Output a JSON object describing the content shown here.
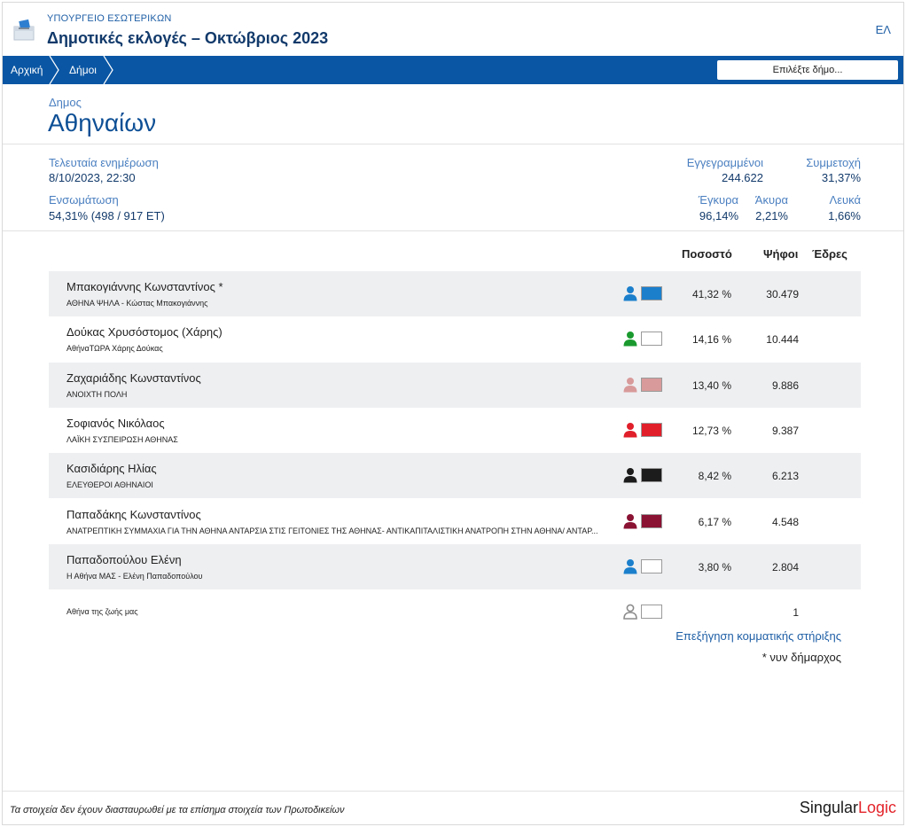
{
  "header": {
    "ministry": "ΥΠΟΥΡΓΕΙΟ ΕΣΩΤΕΡΙΚΩΝ",
    "title": "Δημοτικές εκλογές – Οκτώβριος 2023",
    "language": "ΕΛ"
  },
  "nav": {
    "home": "Αρχική",
    "municipalities": "Δήμοι",
    "select_placeholder": "Επιλέξτε δήμο..."
  },
  "municipality": {
    "label": "Δημος",
    "name": "Αθηναίων"
  },
  "stats": {
    "last_update_label": "Τελευταία ενημέρωση",
    "last_update_value": "8/10/2023, 22:30",
    "integration_label": "Ενσωμάτωση",
    "integration_value": "54,31% (498 / 917 ΕΤ)",
    "registered_label": "Εγγεγραμμένοι",
    "registered_value": "244.622",
    "turnout_label": "Συμμετοχή",
    "turnout_value": "31,37%",
    "valid_label": "Έγκυρα",
    "valid_value": "96,14%",
    "invalid_label": "Άκυρα",
    "invalid_value": "2,21%",
    "blank_label": "Λευκά",
    "blank_value": "1,66%"
  },
  "table": {
    "col_percent": "Ποσοστό",
    "col_votes": "Ψήφοι",
    "col_seats": "Έδρες",
    "rows": [
      {
        "candidate": "Μπακογιάννης Κωνσταντίνος *",
        "party": "ΑΘΗΝΑ ΨΗΛΑ - Κώστας Μπακογιάννης",
        "color": "#1b7fcc",
        "percent": "41,32 %",
        "votes": "30.479"
      },
      {
        "candidate": "Δούκας Χρυσόστομος (Χάρης)",
        "party": "ΑθήναΤΩΡΑ Χάρης Δούκας",
        "color": "#ffffff",
        "person_color": "#1a9a2e",
        "percent": "14,16 %",
        "votes": "10.444"
      },
      {
        "candidate": "Ζαχαριάδης Κωνσταντίνος",
        "party": "ΑΝΟΙΧΤΗ ΠΟΛΗ",
        "color": "#d89a9a",
        "percent": "13,40 %",
        "votes": "9.886"
      },
      {
        "candidate": "Σοφιανός Νικόλαος",
        "party": "ΛΑΪΚΗ ΣΥΣΠΕΙΡΩΣΗ ΑΘΗΝΑΣ",
        "color": "#e01f2b",
        "percent": "12,73 %",
        "votes": "9.387"
      },
      {
        "candidate": "Κασιδιάρης Ηλίας",
        "party": "ΕΛΕΥΘΕΡΟΙ ΑΘΗΝΑΙΟΙ",
        "color": "#1c1c1c",
        "percent": "8,42 %",
        "votes": "6.213"
      },
      {
        "candidate": "Παπαδάκης Κωνσταντίνος",
        "party": "ΑΝΑΤΡΕΠΤΙΚΗ ΣΥΜΜΑΧΙΑ ΓΙΑ ΤΗΝ ΑΘΗΝΑ ΑΝΤΑΡΣΙΑ ΣΤΙΣ ΓΕΙΤΟΝΙΕΣ ΤΗΣ ΑΘΗΝΑΣ- ΑΝΤΙΚΑΠΙΤΑΛΙΣΤΙΚΗ ΑΝΑΤΡΟΠΗ ΣΤΗΝ ΑΘΗΝΑ/ ΑΝΤΑΡ...",
        "color": "#8a1233",
        "percent": "6,17 %",
        "votes": "4.548"
      },
      {
        "candidate": "Παπαδοπούλου Ελένη",
        "party": "Η Αθήνα ΜΑΣ - Ελένη Παπαδοπούλου",
        "color": "#ffffff",
        "person_color": "#1b7fcc",
        "percent": "3,80 %",
        "votes": "2.804"
      },
      {
        "candidate": "",
        "party": "Αθήνα της ζωής μας",
        "color": "#ffffff",
        "person_color": "#8c8c8c",
        "percent": "",
        "votes": "1"
      }
    ]
  },
  "footer_links": {
    "explanation": "Επεξήγηση κομματικής στήριξης",
    "note": "* νυν δήμαρχος"
  },
  "footer": {
    "disclaimer": "Τα στοιχεία δεν έχουν διασταυρωθεί με τα επίσημα στοιχεία των Πρωτοδικείων",
    "logo_part1": "Singular",
    "logo_part2": "Logic"
  }
}
